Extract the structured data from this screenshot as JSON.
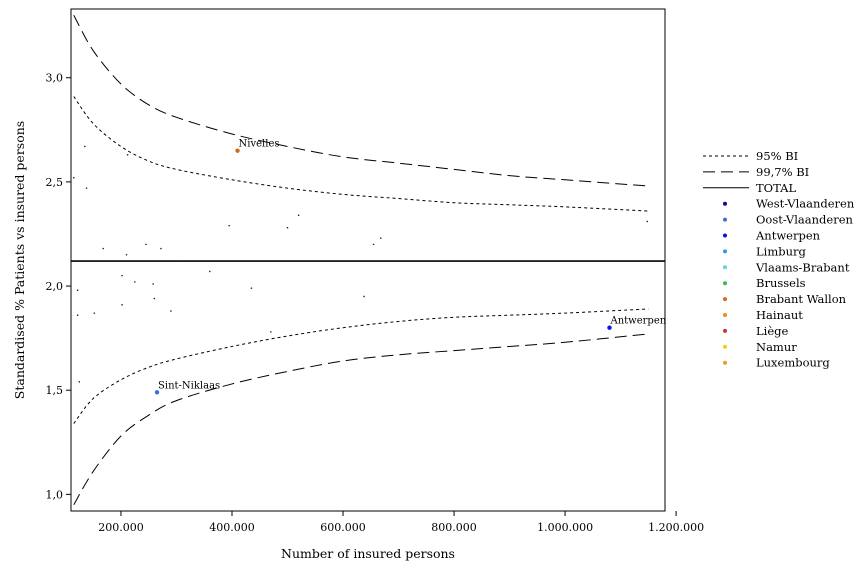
{
  "chart_data": {
    "type": "scatter",
    "xlabel": "Number of insured persons",
    "ylabel": "Standardised % Patients vs insured persons",
    "xlim": [
      110000,
      1180000
    ],
    "ylim": [
      0.92,
      3.33
    ],
    "x_ticks": [
      {
        "v": 200000,
        "label": "200.000"
      },
      {
        "v": 400000,
        "label": "400.000"
      },
      {
        "v": 600000,
        "label": "600.000"
      },
      {
        "v": 800000,
        "label": "800.000"
      },
      {
        "v": 1000000,
        "label": "1.000.000"
      },
      {
        "v": 1200000,
        "label": "1.200.000"
      }
    ],
    "y_ticks": [
      {
        "v": 1.0,
        "label": "1,0"
      },
      {
        "v": 1.5,
        "label": "1,5"
      },
      {
        "v": 2.0,
        "label": "2,0"
      },
      {
        "v": 2.5,
        "label": "2,5"
      },
      {
        "v": 3.0,
        "label": "3,0"
      }
    ],
    "total": 2.12,
    "grid": false,
    "legend_position": "right",
    "legend": [
      {
        "kind": "line",
        "style": "dotted",
        "label": "95% BI"
      },
      {
        "kind": "line",
        "style": "dashed",
        "label": "99,7% BI"
      },
      {
        "kind": "line",
        "style": "solid",
        "label": "TOTAL"
      },
      {
        "kind": "dot",
        "color": "#0a0a8c",
        "label": "West-Vlaanderen"
      },
      {
        "kind": "dot",
        "color": "#3a6fd8",
        "label": "Oost-Vlaanderen"
      },
      {
        "kind": "dot",
        "color": "#1010e0",
        "label": "Antwerpen"
      },
      {
        "kind": "dot",
        "color": "#2e9be8",
        "label": "Limburg"
      },
      {
        "kind": "dot",
        "color": "#5fd3e8",
        "label": "Vlaams-Brabant"
      },
      {
        "kind": "dot",
        "color": "#3dba4a",
        "label": "Brussels"
      },
      {
        "kind": "dot",
        "color": "#d2691e",
        "label": "Brabant Wallon"
      },
      {
        "kind": "dot",
        "color": "#f08a1c",
        "label": "Hainaut"
      },
      {
        "kind": "dot",
        "color": "#c0392b",
        "label": "Liège"
      },
      {
        "kind": "dot",
        "color": "#f0d010",
        "label": "Namur"
      },
      {
        "kind": "dot",
        "color": "#e8a020",
        "label": "Luxembourg"
      }
    ],
    "ci95_upper": [
      [
        115000,
        2.91
      ],
      [
        150000,
        2.78
      ],
      [
        200000,
        2.67
      ],
      [
        250000,
        2.6
      ],
      [
        300000,
        2.56
      ],
      [
        400000,
        2.51
      ],
      [
        500000,
        2.47
      ],
      [
        600000,
        2.44
      ],
      [
        700000,
        2.42
      ],
      [
        800000,
        2.4
      ],
      [
        900000,
        2.39
      ],
      [
        1000000,
        2.38
      ],
      [
        1150000,
        2.36
      ]
    ],
    "ci95_lower": [
      [
        115000,
        1.34
      ],
      [
        150000,
        1.46
      ],
      [
        200000,
        1.55
      ],
      [
        250000,
        1.61
      ],
      [
        300000,
        1.65
      ],
      [
        400000,
        1.71
      ],
      [
        500000,
        1.76
      ],
      [
        600000,
        1.8
      ],
      [
        700000,
        1.83
      ],
      [
        800000,
        1.85
      ],
      [
        900000,
        1.86
      ],
      [
        1000000,
        1.87
      ],
      [
        1150000,
        1.89
      ]
    ],
    "ci997_upper": [
      [
        115000,
        3.3
      ],
      [
        150000,
        3.13
      ],
      [
        200000,
        2.97
      ],
      [
        250000,
        2.87
      ],
      [
        300000,
        2.81
      ],
      [
        400000,
        2.73
      ],
      [
        500000,
        2.67
      ],
      [
        600000,
        2.62
      ],
      [
        700000,
        2.59
      ],
      [
        800000,
        2.56
      ],
      [
        900000,
        2.53
      ],
      [
        1000000,
        2.51
      ],
      [
        1150000,
        2.48
      ]
    ],
    "ci997_lower": [
      [
        115000,
        0.95
      ],
      [
        150000,
        1.11
      ],
      [
        200000,
        1.28
      ],
      [
        250000,
        1.38
      ],
      [
        300000,
        1.45
      ],
      [
        400000,
        1.53
      ],
      [
        500000,
        1.59
      ],
      [
        600000,
        1.64
      ],
      [
        700000,
        1.67
      ],
      [
        800000,
        1.69
      ],
      [
        900000,
        1.71
      ],
      [
        1000000,
        1.73
      ],
      [
        1150000,
        1.77
      ]
    ],
    "points": [
      {
        "x": 115000,
        "y": 2.52,
        "color": "#222222",
        "r": 0.8
      },
      {
        "x": 135000,
        "y": 2.67,
        "color": "#222222",
        "r": 0.8
      },
      {
        "x": 138000,
        "y": 2.47,
        "color": "#222222",
        "r": 0.8
      },
      {
        "x": 122000,
        "y": 1.98,
        "color": "#222222",
        "r": 0.8
      },
      {
        "x": 122000,
        "y": 1.86,
        "color": "#222222",
        "r": 0.8
      },
      {
        "x": 125000,
        "y": 1.54,
        "color": "#222222",
        "r": 0.8
      },
      {
        "x": 152000,
        "y": 1.87,
        "color": "#222222",
        "r": 0.8
      },
      {
        "x": 168000,
        "y": 2.18,
        "color": "#222222",
        "r": 0.8
      },
      {
        "x": 202000,
        "y": 2.05,
        "color": "#222222",
        "r": 0.8
      },
      {
        "x": 202000,
        "y": 1.91,
        "color": "#222222",
        "r": 0.8
      },
      {
        "x": 210000,
        "y": 2.15,
        "color": "#222222",
        "r": 0.8
      },
      {
        "x": 212000,
        "y": 2.63,
        "color": "#222222",
        "r": 0.8
      },
      {
        "x": 225000,
        "y": 2.02,
        "color": "#222222",
        "r": 0.8
      },
      {
        "x": 245000,
        "y": 2.2,
        "color": "#222222",
        "r": 0.8
      },
      {
        "x": 258000,
        "y": 2.01,
        "color": "#222222",
        "r": 0.8
      },
      {
        "x": 260000,
        "y": 1.94,
        "color": "#222222",
        "r": 0.8
      },
      {
        "x": 272000,
        "y": 2.18,
        "color": "#222222",
        "r": 0.8
      },
      {
        "x": 290000,
        "y": 1.88,
        "color": "#222222",
        "r": 0.8
      },
      {
        "x": 305000,
        "y": 2.12,
        "color": "#222222",
        "r": 0.8
      },
      {
        "x": 360000,
        "y": 2.07,
        "color": "#222222",
        "r": 0.8
      },
      {
        "x": 395000,
        "y": 2.29,
        "color": "#222222",
        "r": 0.8
      },
      {
        "x": 435000,
        "y": 1.99,
        "color": "#222222",
        "r": 0.8
      },
      {
        "x": 470000,
        "y": 1.78,
        "color": "#222222",
        "r": 0.8
      },
      {
        "x": 500000,
        "y": 2.28,
        "color": "#222222",
        "r": 0.8
      },
      {
        "x": 520000,
        "y": 2.34,
        "color": "#222222",
        "r": 0.8
      },
      {
        "x": 638000,
        "y": 1.95,
        "color": "#222222",
        "r": 0.8
      },
      {
        "x": 655000,
        "y": 2.2,
        "color": "#222222",
        "r": 0.8
      },
      {
        "x": 668000,
        "y": 2.23,
        "color": "#222222",
        "r": 0.8
      },
      {
        "x": 1148000,
        "y": 2.31,
        "color": "#222222",
        "r": 0.8
      },
      {
        "x": 410000,
        "y": 2.65,
        "color": "#d2691e",
        "r": 2.2
      },
      {
        "x": 265000,
        "y": 1.49,
        "color": "#3a6fd8",
        "r": 2.2
      },
      {
        "x": 1080000,
        "y": 1.8,
        "color": "#1010e0",
        "r": 2.2
      }
    ],
    "annotations": [
      {
        "x": 410000,
        "y": 2.65,
        "text": "Nivelles"
      },
      {
        "x": 265000,
        "y": 1.49,
        "text": "Sint-Niklaas"
      },
      {
        "x": 1080000,
        "y": 1.8,
        "text": "Antwerpen"
      }
    ]
  }
}
